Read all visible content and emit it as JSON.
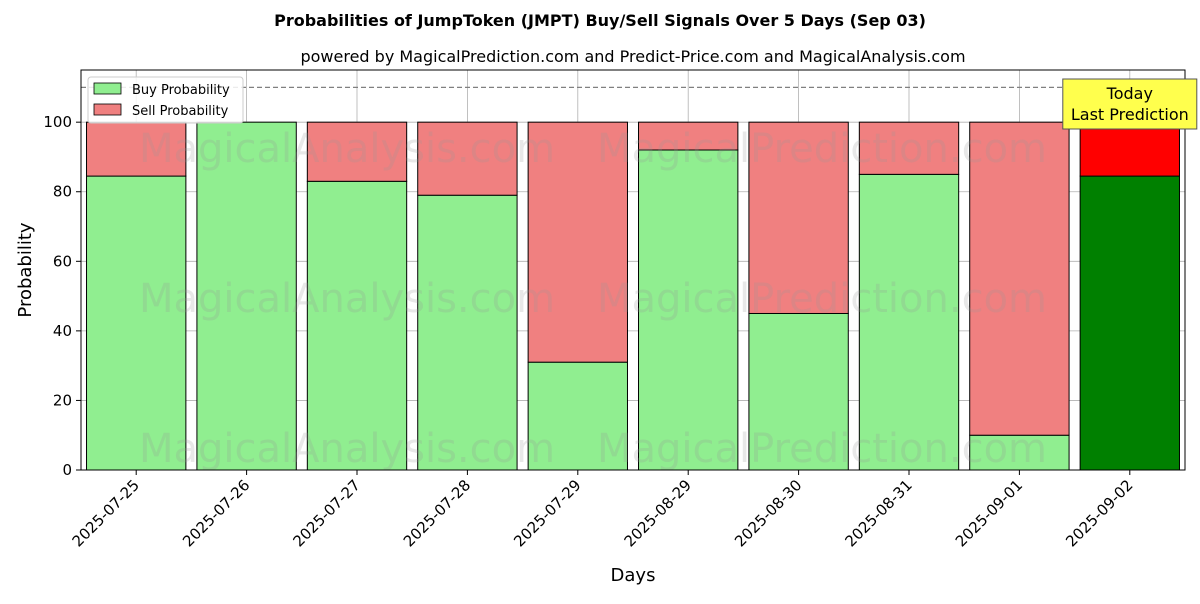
{
  "chart_data": {
    "type": "bar",
    "stacked": true,
    "title": "Probabilities of JumpToken (JMPT) Buy/Sell Signals Over 5 Days (Sep 03)",
    "subtitle": "powered by MagicalPrediction.com and Predict-Price.com and MagicalAnalysis.com",
    "xlabel": "Days",
    "ylabel": "Probability",
    "ylim": [
      0,
      115
    ],
    "yticks": [
      0,
      20,
      40,
      60,
      80,
      100
    ],
    "grid": true,
    "legend_position": "top-left",
    "reference_line": 110,
    "categories": [
      "2025-07-25",
      "2025-07-26",
      "2025-07-27",
      "2025-07-28",
      "2025-07-29",
      "2025-08-29",
      "2025-08-30",
      "2025-08-31",
      "2025-09-01",
      "2025-09-02"
    ],
    "series": [
      {
        "name": "Buy Probability",
        "color": "#90ee90",
        "highlight_color": "#008000",
        "values": [
          84.5,
          100,
          83,
          79,
          31,
          92,
          45,
          85,
          10,
          84.5
        ]
      },
      {
        "name": "Sell Probability",
        "color": "#f08080",
        "highlight_color": "#ff0000",
        "values": [
          15.5,
          0,
          17,
          21,
          69,
          8,
          55,
          15,
          90,
          15.5
        ]
      }
    ],
    "highlight_category": "2025-09-02",
    "annotation": {
      "line1": "Today",
      "line2": "Last Prediction",
      "box_color": "#ffff4d"
    },
    "watermarks": [
      "MagicalAnalysis.com",
      "MagicalPrediction.com"
    ]
  }
}
